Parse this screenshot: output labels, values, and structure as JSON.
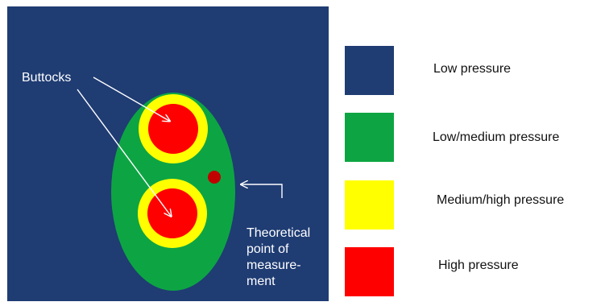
{
  "colors": {
    "background": "#1f3c73",
    "low": "#1f3c73",
    "low_medium": "#0da543",
    "medium_high": "#ffff00",
    "high": "#ff0000",
    "measurement_point": "#c00000",
    "annotation": "#ffffff"
  },
  "diagram": {
    "buttocks_label": "Buttocks",
    "measurement_label_lines": [
      "Theoretical",
      "point of",
      "measure-",
      "ment"
    ]
  },
  "legend": {
    "items": [
      {
        "label": "Low pressure",
        "color": "#1f3c73"
      },
      {
        "label": "Low/medium pressure",
        "color": "#0da543"
      },
      {
        "label": "Medium/high pressure",
        "color": "#ffff00"
      },
      {
        "label": "High pressure",
        "color": "#ff0000"
      }
    ]
  }
}
